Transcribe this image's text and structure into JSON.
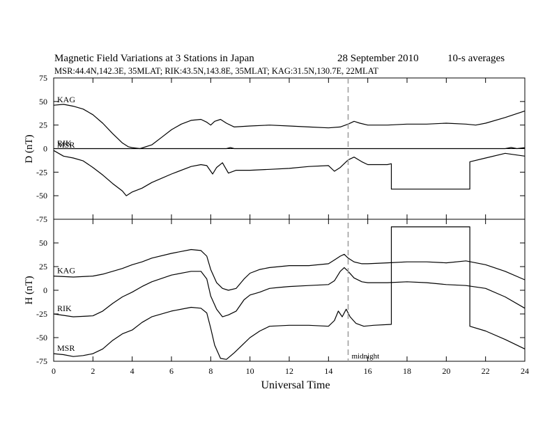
{
  "header": {
    "title": "Magnetic Field Variations at 3 Stations in Japan",
    "date": "28 September 2010",
    "averaging": "10-s averages",
    "stations_line": "MSR:44.4N,142.3E, 35MLAT;  RIK:43.5N,143.8E, 35MLAT;  KAG:31.5N,130.7E, 22MLAT"
  },
  "colors": {
    "line": "#000000",
    "marker": "#a0a0a0"
  },
  "chart_data": [
    {
      "type": "line",
      "panel": "D",
      "ylabel": "D (nT)",
      "ylim": [
        -75,
        75
      ],
      "yticks": [
        75,
        50,
        25,
        0,
        -25,
        -50,
        -75
      ],
      "xlim": [
        0,
        24
      ],
      "grid": false,
      "reference_line": 0,
      "series": [
        {
          "name": "KAG",
          "x": [
            0,
            0.5,
            1,
            1.5,
            2,
            2.5,
            3,
            3.5,
            3.8,
            4,
            4.4,
            5,
            5.5,
            6,
            6.5,
            7,
            7.5,
            7.8,
            8,
            8.2,
            8.5,
            8.8,
            9.2,
            10,
            11,
            12,
            13,
            14,
            14.6,
            15,
            15.3,
            15.6,
            16,
            17,
            18,
            19,
            20,
            21,
            21.5,
            22,
            23,
            24
          ],
          "values": [
            46,
            47,
            45,
            42,
            36,
            27,
            16,
            6,
            2,
            1,
            0,
            4,
            12,
            20,
            26,
            30,
            31,
            28,
            25,
            29,
            31,
            27,
            23,
            24,
            25,
            24,
            23,
            22,
            23,
            26,
            29,
            27,
            25,
            25,
            26,
            26,
            27,
            26,
            25,
            27,
            33,
            40
          ]
        },
        {
          "name": "RIK",
          "x": [
            0,
            2,
            4,
            6,
            8.8,
            9,
            9.2,
            12,
            15,
            18,
            20,
            22,
            23,
            23.3,
            23.6,
            24
          ],
          "values": [
            0,
            0,
            0,
            0,
            0,
            1.2,
            0,
            0,
            0,
            0,
            0,
            0,
            0,
            1.2,
            0,
            1
          ]
        },
        {
          "name": "MSR",
          "x": [
            0,
            0.5,
            1,
            1.5,
            2,
            2.5,
            3,
            3.5,
            3.7,
            4,
            4.5,
            5,
            6,
            7,
            7.5,
            7.8,
            8.1,
            8.3,
            8.6,
            8.9,
            9.3,
            10,
            11,
            12,
            13,
            14,
            14.3,
            14.6,
            15,
            15.3,
            15.7,
            16,
            17,
            17.2,
            17.2,
            21.2,
            21.2,
            22,
            23,
            24
          ],
          "values": [
            -2,
            -8,
            -10,
            -13,
            -20,
            -28,
            -37,
            -45,
            -50,
            -46,
            -42,
            -36,
            -27,
            -19,
            -17,
            -18,
            -27,
            -20,
            -15,
            -26,
            -23,
            -23,
            -22,
            -21,
            -19,
            -18,
            -24,
            -20,
            -12,
            -9,
            -14,
            -17,
            -17,
            -16,
            -43,
            -43,
            -14,
            -10,
            -5,
            -8
          ]
        }
      ]
    },
    {
      "type": "line",
      "panel": "H",
      "ylabel": "H (nT)",
      "xlabel": "Universal Time",
      "ylim": [
        -75,
        75
      ],
      "yticks": [
        50,
        25,
        0,
        -25,
        -50,
        -75
      ],
      "xlim": [
        0,
        24
      ],
      "xticks": [
        0,
        2,
        4,
        6,
        8,
        10,
        12,
        14,
        16,
        18,
        20,
        22,
        24
      ],
      "grid": false,
      "annotation": {
        "x": 15,
        "label": "midnight"
      },
      "series": [
        {
          "name": "KAG",
          "x": [
            0,
            1,
            2,
            2.5,
            3,
            3.5,
            4,
            4.5,
            5,
            6,
            7,
            7.5,
            7.8,
            8,
            8.3,
            8.6,
            8.9,
            9.3,
            9.7,
            10,
            10.5,
            11,
            11.5,
            12,
            13,
            14,
            14.3,
            14.6,
            14.8,
            15,
            15.3,
            15.7,
            16,
            17,
            18,
            19,
            20,
            21,
            22,
            23,
            24
          ],
          "values": [
            15,
            14,
            15,
            17,
            20,
            23,
            27,
            30,
            34,
            39,
            43,
            42,
            36,
            22,
            8,
            2,
            0,
            2,
            12,
            18,
            22,
            24,
            25,
            26,
            26,
            28,
            32,
            36,
            38,
            34,
            30,
            28,
            28,
            29,
            30,
            30,
            29,
            31,
            27,
            20,
            11
          ]
        },
        {
          "name": "RIK",
          "x": [
            0,
            1,
            2,
            2.5,
            3,
            3.5,
            4,
            4.5,
            5,
            6,
            7,
            7.5,
            7.8,
            8,
            8.3,
            8.6,
            8.9,
            9.3,
            9.7,
            10,
            10.5,
            11,
            11.5,
            12,
            13,
            14,
            14.3,
            14.6,
            14.8,
            15,
            15.3,
            15.7,
            16,
            17,
            18,
            19,
            20,
            21,
            22,
            23,
            24
          ],
          "values": [
            -25,
            -28,
            -27,
            -22,
            -14,
            -7,
            -2,
            4,
            9,
            16,
            20,
            20,
            12,
            -6,
            -20,
            -28,
            -26,
            -22,
            -10,
            -5,
            -2,
            2,
            3,
            4,
            5,
            6,
            10,
            20,
            24,
            20,
            13,
            9,
            8,
            8,
            9,
            8,
            6,
            5,
            2,
            -7,
            -19
          ]
        },
        {
          "name": "MSR",
          "x": [
            0,
            0.5,
            1,
            1.5,
            2,
            2.5,
            3,
            3.5,
            4,
            4.5,
            5,
            6,
            7,
            7.5,
            7.8,
            8,
            8.2,
            8.5,
            8.8,
            9.2,
            9.7,
            10,
            10.5,
            11,
            12,
            13,
            14,
            14.3,
            14.5,
            14.7,
            14.9,
            15.1,
            15.4,
            15.8,
            16.3,
            17.2,
            17.2,
            21.2,
            21.2,
            22,
            23,
            24
          ],
          "values": [
            -67,
            -68,
            -70,
            -69,
            -67,
            -62,
            -53,
            -46,
            -42,
            -34,
            -28,
            -22,
            -18,
            -19,
            -24,
            -40,
            -58,
            -72,
            -73,
            -66,
            -56,
            -50,
            -43,
            -38,
            -37,
            -37,
            -38,
            -32,
            -22,
            -28,
            -20,
            -28,
            -35,
            -38,
            -37,
            -36,
            67,
            67,
            -38,
            -43,
            -52,
            -62
          ]
        }
      ]
    }
  ]
}
